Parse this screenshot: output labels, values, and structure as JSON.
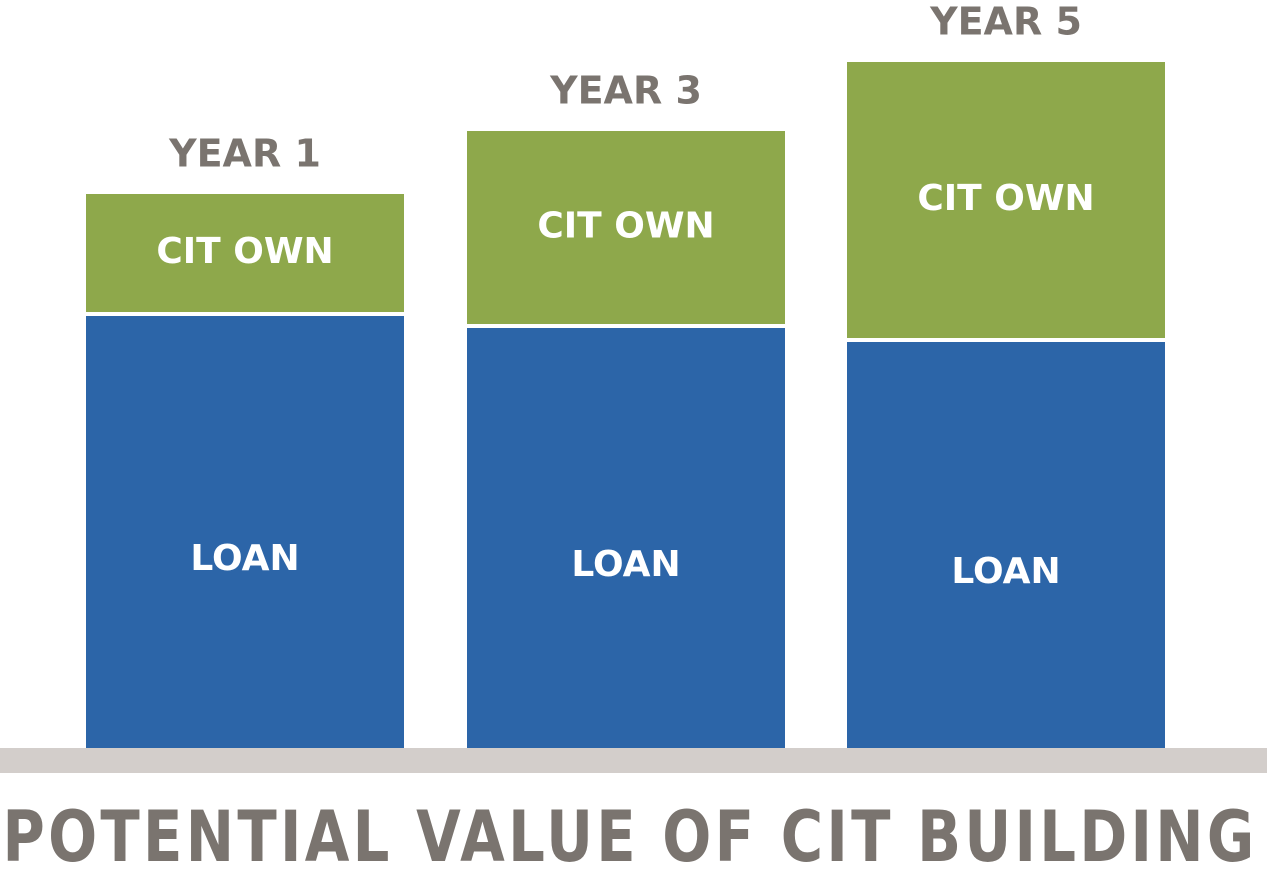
{
  "chart_data": {
    "type": "stacked-bar",
    "title": "POTENTIAL VALUE OF CIT BUILDING",
    "categories": [
      "YEAR 1",
      "YEAR 3",
      "YEAR 5"
    ],
    "series": [
      {
        "name": "LOAN",
        "color": "#2c65a8",
        "values": [
          432,
          420,
          406
        ]
      },
      {
        "name": "CIT OWN",
        "color": "#8ea84b",
        "values": [
          122,
          197,
          280
        ]
      }
    ],
    "ylim": [
      0,
      700
    ],
    "base_color": "#d3cecb"
  }
}
